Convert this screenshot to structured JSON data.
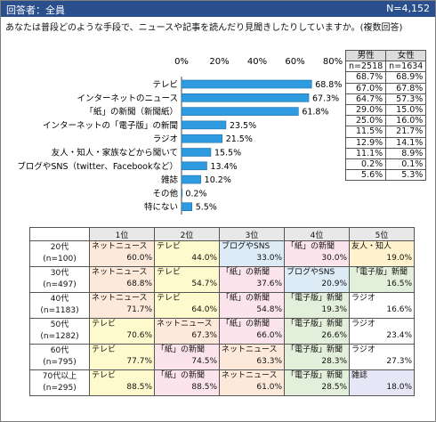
{
  "header": {
    "respondents": "回答者：全員",
    "n": "N=4,152"
  },
  "question": "あなたは普段どのような手段で、ニュースや記事を読んだり見聞きしたりしていますか。(複数回答)",
  "chart_data": {
    "type": "bar",
    "orientation": "horizontal",
    "categories": [
      "テレビ",
      "インターネットのニュース",
      "「紙」の新聞（新聞紙）",
      "インターネットの「電子版」の新聞",
      "ラジオ",
      "友人・知人・家族などから聞いて",
      "ブログやSNS（twitter、Facebookなど）",
      "雑誌",
      "その他",
      "特にない"
    ],
    "values": [
      68.8,
      67.3,
      61.8,
      23.5,
      21.5,
      15.5,
      13.4,
      10.2,
      0.2,
      5.5
    ],
    "value_labels": [
      "68.8%",
      "67.3%",
      "61.8%",
      "23.5%",
      "21.5%",
      "15.5%",
      "13.4%",
      "10.2%",
      "0.2%",
      "5.5%"
    ],
    "xlim": [
      0,
      80
    ],
    "xticks": [
      "0%",
      "20%",
      "40%",
      "60%",
      "80%"
    ],
    "bar_color": "#2e9be0"
  },
  "sex_table": {
    "headers": [
      "男性",
      "女性"
    ],
    "n": [
      "n=2518",
      "n=1634"
    ],
    "rows": [
      [
        "68.7%",
        "68.9%"
      ],
      [
        "67.0%",
        "67.8%"
      ],
      [
        "64.7%",
        "57.3%"
      ],
      [
        "29.0%",
        "15.0%"
      ],
      [
        "25.0%",
        "16.0%"
      ],
      [
        "11.5%",
        "21.7%"
      ],
      [
        "12.9%",
        "14.1%"
      ],
      [
        "11.1%",
        "8.9%"
      ],
      [
        "0.2%",
        "0.1%"
      ],
      [
        "5.6%",
        "5.3%"
      ]
    ]
  },
  "rank_table": {
    "headers": [
      "1位",
      "2位",
      "3位",
      "4位",
      "5位"
    ],
    "rows": [
      {
        "age": "20代",
        "n": "(n=100)",
        "cells": [
          [
            "ネットニュース",
            "60.0%",
            "net"
          ],
          [
            "テレビ",
            "44.0%",
            "tv"
          ],
          [
            "ブログやSNS",
            "33.0%",
            "blog"
          ],
          [
            "「紙」の新聞",
            "30.0%",
            "paper"
          ],
          [
            "友人・知人",
            "19.0%",
            "friend"
          ]
        ]
      },
      {
        "age": "30代",
        "n": "(n=497)",
        "cells": [
          [
            "ネットニュース",
            "68.8%",
            "net"
          ],
          [
            "テレビ",
            "54.7%",
            "tv"
          ],
          [
            "「紙」の新聞",
            "37.6%",
            "paper"
          ],
          [
            "ブログやSNS",
            "20.9%",
            "blog"
          ],
          [
            "「電子版」新聞",
            "16.5%",
            "den"
          ]
        ]
      },
      {
        "age": "40代",
        "n": "(n=1183)",
        "cells": [
          [
            "ネットニュース",
            "71.7%",
            "net"
          ],
          [
            "テレビ",
            "64.0%",
            "tv"
          ],
          [
            "「紙」の新聞",
            "54.8%",
            "paper"
          ],
          [
            "「電子版」新聞",
            "19.3%",
            "den"
          ],
          [
            "ラジオ",
            "16.6%",
            "radio"
          ]
        ]
      },
      {
        "age": "50代",
        "n": "(n=1282)",
        "cells": [
          [
            "テレビ",
            "70.6%",
            "tv"
          ],
          [
            "ネットニュース",
            "67.3%",
            "net"
          ],
          [
            "「紙」の新聞",
            "66.0%",
            "paper"
          ],
          [
            "「電子版」新聞",
            "26.6%",
            "den"
          ],
          [
            "ラジオ",
            "23.4%",
            "radio"
          ]
        ]
      },
      {
        "age": "60代",
        "n": "(n=795)",
        "cells": [
          [
            "テレビ",
            "77.7%",
            "tv"
          ],
          [
            "「紙」の新聞",
            "74.5%",
            "paper"
          ],
          [
            "ネットニュース",
            "63.3%",
            "net"
          ],
          [
            "「電子版」新聞",
            "28.3%",
            "den"
          ],
          [
            "ラジオ",
            "27.3%",
            "radio"
          ]
        ]
      },
      {
        "age": "70代以上",
        "n": "(n=295)",
        "cells": [
          [
            "テレビ",
            "88.5%",
            "tv"
          ],
          [
            "「紙」の新聞",
            "88.5%",
            "paper"
          ],
          [
            "ネットニュース",
            "61.0%",
            "net"
          ],
          [
            "「電子版」新聞",
            "28.5%",
            "den"
          ],
          [
            "雑誌",
            "18.0%",
            "zasshi"
          ]
        ]
      }
    ]
  }
}
